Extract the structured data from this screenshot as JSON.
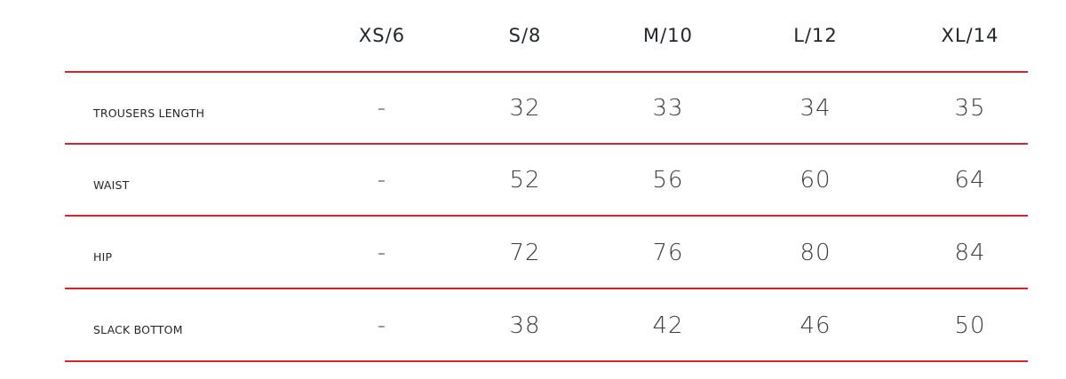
{
  "table": {
    "headers": [
      "XS/6",
      "S/8",
      "M/10",
      "L/12",
      "XL/14"
    ],
    "rows": [
      {
        "label": "TROUSERS LENGTH",
        "values": [
          "-",
          "32",
          "33",
          "34",
          "35"
        ]
      },
      {
        "label": "WAIST",
        "values": [
          "-",
          "52",
          "56",
          "60",
          "64"
        ]
      },
      {
        "label": "HIP",
        "values": [
          "-",
          "72",
          "76",
          "80",
          "84"
        ]
      },
      {
        "label": "SLACK BOTTOM",
        "values": [
          "-",
          "38",
          "42",
          "46",
          "50"
        ]
      }
    ],
    "divider_color": "#d9232a"
  }
}
